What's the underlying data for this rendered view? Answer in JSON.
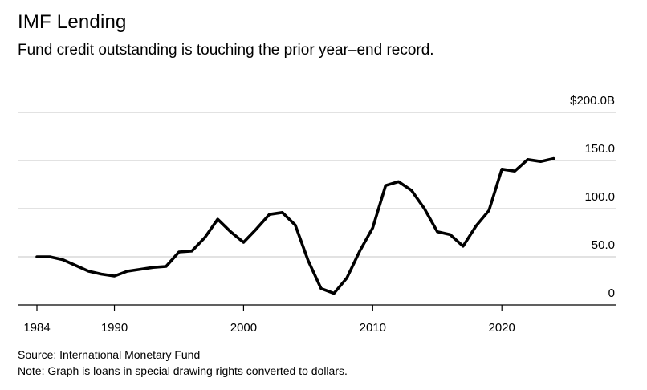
{
  "title": "IMF Lending",
  "subtitle": "Fund credit outstanding is touching the prior year–end record.",
  "source": "Source: International Monetary Fund",
  "note": "Note: Graph is loans in special drawing rights converted to dollars.",
  "colors": {
    "line": "#000000",
    "grid": "#d9d9d9",
    "axis": "#000000"
  },
  "chart_data": {
    "type": "line",
    "title": "IMF Lending",
    "xlabel": "",
    "ylabel": "",
    "xlim": [
      1984,
      2029
    ],
    "ylim": [
      0,
      200
    ],
    "grid": true,
    "y_ticks": [
      {
        "value": 0,
        "label": "0"
      },
      {
        "value": 50,
        "label": "50.0"
      },
      {
        "value": 100,
        "label": "100.0"
      },
      {
        "value": 150,
        "label": "150.0"
      },
      {
        "value": 200,
        "label": "$200.0B"
      }
    ],
    "x_ticks": [
      {
        "value": 1984,
        "label": "1984"
      },
      {
        "value": 1990,
        "label": "1990"
      },
      {
        "value": 2000,
        "label": "2000"
      },
      {
        "value": 2010,
        "label": "2010"
      },
      {
        "value": 2020,
        "label": "2020"
      }
    ],
    "series": [
      {
        "name": "Fund credit outstanding",
        "x": [
          1984,
          1985,
          1986,
          1987,
          1988,
          1989,
          1990,
          1991,
          1992,
          1993,
          1994,
          1995,
          1996,
          1997,
          1998,
          1999,
          2000,
          2001,
          2002,
          2003,
          2004,
          2005,
          2006,
          2007,
          2008,
          2009,
          2010,
          2011,
          2012,
          2013,
          2014,
          2015,
          2016,
          2017,
          2018,
          2019,
          2020,
          2021,
          2022,
          2023,
          2024
        ],
        "values": [
          50,
          50,
          47,
          41,
          35,
          32,
          30,
          35,
          37,
          39,
          40,
          55,
          56,
          70,
          89,
          76,
          65,
          79,
          94,
          96,
          83,
          46,
          17,
          12,
          28,
          56,
          80,
          124,
          128,
          119,
          100,
          76,
          73,
          61,
          82,
          98,
          141,
          139,
          151,
          149,
          152
        ]
      }
    ]
  }
}
